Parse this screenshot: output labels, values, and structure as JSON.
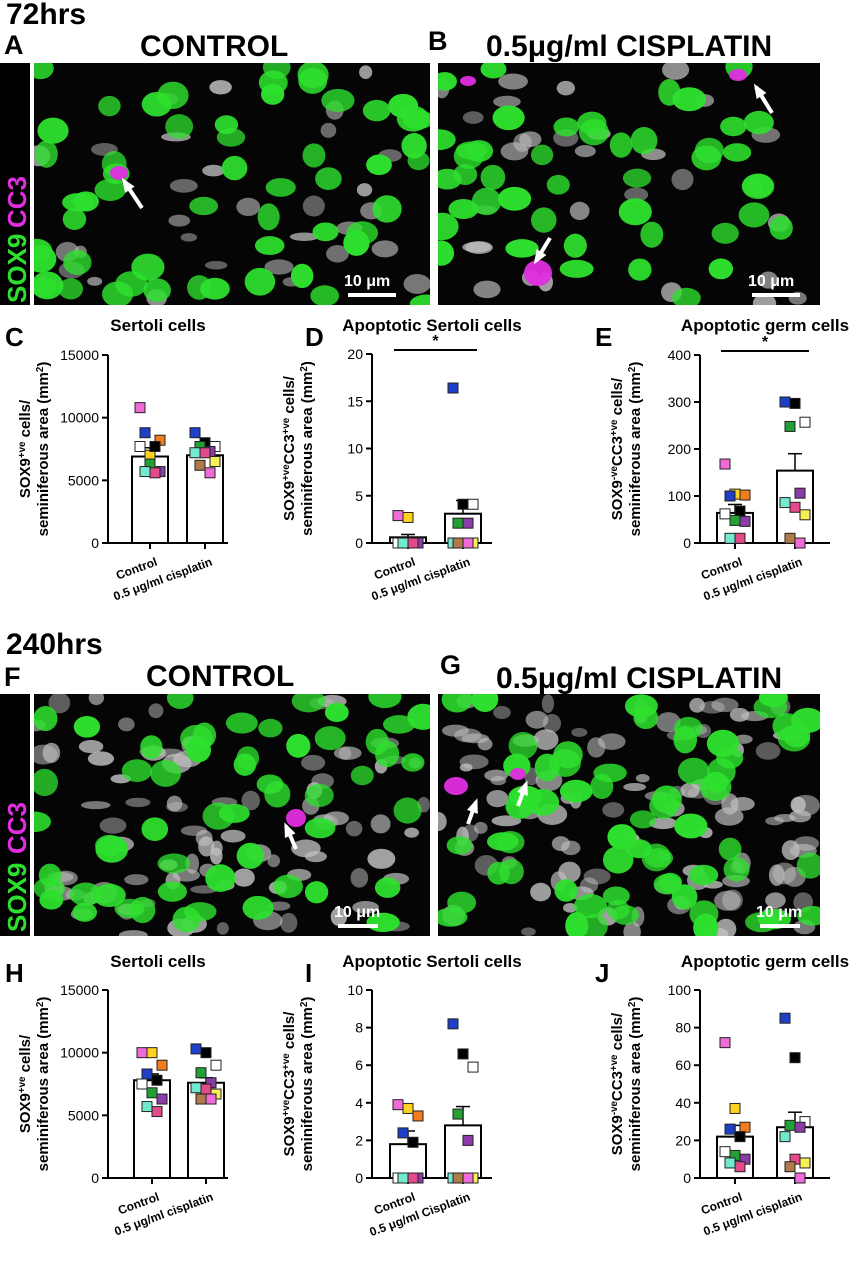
{
  "sections": [
    {
      "time": "72hrs",
      "panels": [
        {
          "letter": "A",
          "title": "CONTROL"
        },
        {
          "letter": "B",
          "title": "0.5μg/ml CISPLATIN"
        }
      ],
      "stain_sox9": "SOX9",
      "stain_cc3": "CC3",
      "scale": "10 μm"
    },
    {
      "time": "240hrs",
      "panels": [
        {
          "letter": "F",
          "title": "CONTROL"
        },
        {
          "letter": "G",
          "title": "0.5μg/ml CISPLATIN"
        }
      ],
      "stain_sox9": "SOX9",
      "stain_cc3": "CC3",
      "scale": "10 μm"
    }
  ],
  "colors": {
    "sox9": "#2ee02e",
    "cc3": "#e02ee0",
    "nuclei": "#bfbfbf"
  },
  "chart_data": [
    {
      "letter": "C",
      "type": "bar",
      "title": "Sertoli cells",
      "ylabel_lines": [
        "SOX9+ve cells/",
        "seminiferous area (mm2)"
      ],
      "categories": [
        "Control",
        "0.5 μg/ml cisplatin"
      ],
      "values": [
        6900,
        7000
      ],
      "errors": [
        700,
        500
      ],
      "ylim": [
        0,
        15000
      ],
      "yticks": [
        0,
        5000,
        10000,
        15000
      ],
      "sig": "",
      "points": [
        [
          10800,
          7000,
          8200,
          8800,
          7700,
          7700,
          6300,
          5700,
          5700,
          5600
        ],
        [
          8800,
          8000,
          7700,
          7700,
          7300,
          7200,
          7200,
          6500,
          6200,
          5600
        ]
      ]
    },
    {
      "letter": "D",
      "type": "bar",
      "title": "Apoptotic Sertoli cells",
      "ylabel_lines": [
        "SOX9+veCC3+ve cells/",
        "seminiferous area (mm2)"
      ],
      "categories": [
        "Control",
        "0.5 μg/ml cisplatin"
      ],
      "values": [
        0.6,
        3.1
      ],
      "errors": [
        0.3,
        1.4
      ],
      "ylim": [
        0,
        20
      ],
      "yticks": [
        0,
        5,
        10,
        15,
        20
      ],
      "sig": "*",
      "points": [
        [
          2.9,
          2.7,
          0,
          0,
          0,
          0,
          0,
          0,
          0,
          0
        ],
        [
          16.4,
          4.1,
          4.1,
          2.1,
          2.1,
          0,
          0,
          0,
          0,
          0
        ]
      ]
    },
    {
      "letter": "E",
      "type": "bar",
      "title": "Apoptotic germ cells",
      "ylabel_lines": [
        "SOX9-veCC3+ve cells/",
        "seminiferous area (mm2)"
      ],
      "categories": [
        "Control",
        "0.5 μg/ml cisplatin"
      ],
      "values": [
        64,
        154
      ],
      "errors": [
        18,
        36
      ],
      "ylim": [
        0,
        400
      ],
      "yticks": [
        0,
        100,
        200,
        300,
        400
      ],
      "sig": "*",
      "points": [
        [
          168,
          104,
          102,
          100,
          68,
          62,
          48,
          46,
          10,
          10
        ],
        [
          300,
          297,
          257,
          248,
          106,
          86,
          76,
          60,
          10,
          0
        ]
      ]
    },
    {
      "letter": "H",
      "type": "bar",
      "title": "Sertoli cells",
      "ylabel_lines": [
        "SOX9+ve cells/",
        "seminiferous area (mm2)"
      ],
      "categories": [
        "Control",
        "0.5 μg/ml cisplatin"
      ],
      "values": [
        7800,
        7600
      ],
      "errors": [
        500,
        400
      ],
      "ylim": [
        0,
        15000
      ],
      "yticks": [
        0,
        5000,
        10000,
        15000
      ],
      "sig": "",
      "points": [
        [
          10000,
          10000,
          9000,
          8300,
          7800,
          7500,
          6800,
          6300,
          5700,
          5300
        ],
        [
          10300,
          10000,
          9000,
          8400,
          7600,
          7200,
          7100,
          6700,
          6300,
          6300
        ]
      ]
    },
    {
      "letter": "I",
      "type": "bar",
      "title": "Apoptotic Sertoli cells",
      "ylabel_lines": [
        "SOX9+veCC3+ve cells/",
        "seminiferous area (mm2)"
      ],
      "categories": [
        "Control",
        "0.5 μg/ml Cisplatin"
      ],
      "values": [
        1.8,
        2.8
      ],
      "errors": [
        0.7,
        1.0
      ],
      "ylim": [
        0,
        10
      ],
      "yticks": [
        0,
        2,
        4,
        6,
        8,
        10
      ],
      "sig": "",
      "points": [
        [
          3.9,
          3.7,
          3.3,
          2.4,
          1.9,
          0,
          0,
          0,
          0,
          0
        ],
        [
          8.2,
          6.6,
          5.9,
          3.4,
          2.0,
          0,
          0,
          0,
          0,
          0
        ]
      ]
    },
    {
      "letter": "J",
      "type": "bar",
      "title": "Apoptotic germ cells",
      "ylabel_lines": [
        "SOX9-veCC3+ve cells/",
        "seminiferous area (mm2)"
      ],
      "categories": [
        "Control",
        "0.5 μg/ml cisplatin"
      ],
      "values": [
        22,
        27
      ],
      "errors": [
        6,
        8
      ],
      "ylim": [
        0,
        100
      ],
      "yticks": [
        0,
        20,
        40,
        60,
        80,
        100
      ],
      "sig": "",
      "points": [
        [
          72,
          37,
          27,
          26,
          22,
          14,
          12,
          10,
          8,
          6
        ],
        [
          85,
          64,
          30,
          28,
          27,
          22,
          10,
          8,
          6,
          0
        ]
      ]
    }
  ]
}
